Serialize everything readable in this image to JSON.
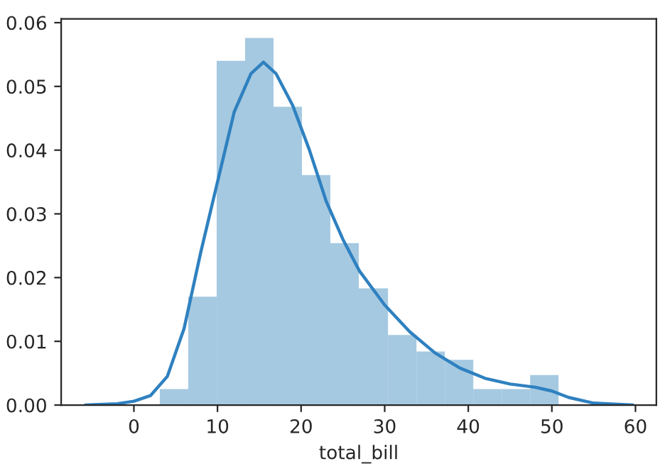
{
  "chart_data": {
    "type": "histogram",
    "xlabel": "total_bill",
    "bins": [
      3.1,
      6.5,
      9.9,
      13.3,
      16.7,
      20.1,
      23.5,
      26.9,
      30.4,
      33.8,
      37.2,
      40.6,
      44.0,
      47.4,
      50.8
    ],
    "series": [
      {
        "color": "#a5c9e1",
        "values": [
          0.0025,
          0.017,
          0.054,
          0.0576,
          0.0468,
          0.0361,
          0.0254,
          0.0183,
          0.011,
          0.0084,
          0.0071,
          0.0025,
          0.0025,
          0.0047
        ]
      },
      {
        "type": "line",
        "color": "#2f81c0",
        "x": [
          -5.8,
          -2,
          0,
          2,
          4,
          6,
          8,
          10,
          12,
          14,
          15.5,
          17,
          19,
          21,
          23,
          25,
          27,
          30,
          33,
          36,
          39,
          42,
          45,
          48,
          50,
          52,
          55,
          59.7
        ],
        "values": [
          0,
          0.0002,
          0.0006,
          0.0015,
          0.0045,
          0.012,
          0.024,
          0.035,
          0.046,
          0.052,
          0.0538,
          0.052,
          0.047,
          0.04,
          0.032,
          0.026,
          0.021,
          0.0157,
          0.0115,
          0.0082,
          0.0058,
          0.0042,
          0.0033,
          0.0028,
          0.0022,
          0.0012,
          0.0003,
          0
        ]
      }
    ],
    "xlim": [
      -8.7,
      62.5
    ],
    "ylim": [
      0,
      0.0606
    ],
    "xticks": [
      0,
      10,
      20,
      30,
      40,
      50,
      60
    ],
    "yticks": [
      {
        "value": 0,
        "label": "0.00"
      },
      {
        "value": 0.01,
        "label": "0.01"
      },
      {
        "value": 0.02,
        "label": "0.02"
      },
      {
        "value": 0.03,
        "label": "0.03"
      },
      {
        "value": 0.04,
        "label": "0.04"
      },
      {
        "value": 0.05,
        "label": "0.05"
      },
      {
        "value": 0.06,
        "label": "0.06"
      }
    ],
    "grid": false,
    "legend": false
  }
}
